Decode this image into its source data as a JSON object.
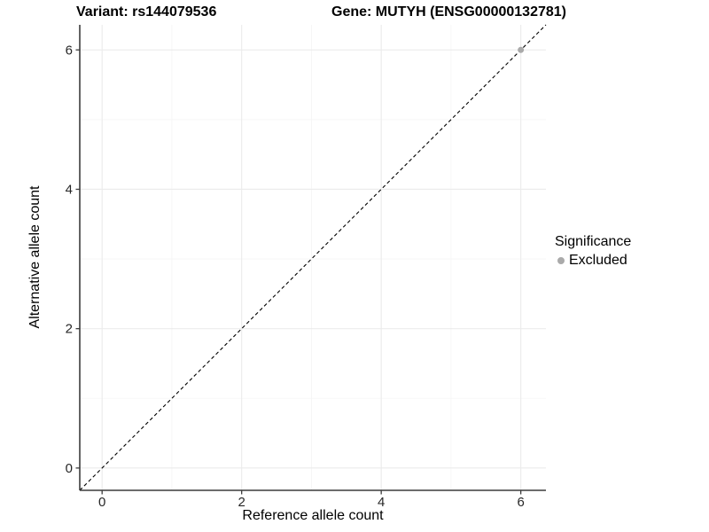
{
  "header": {
    "title_left": "Variant: rs144079536",
    "title_right": "Gene: MUTYH (ENSG00000132781)"
  },
  "chart_data": {
    "type": "scatter",
    "xlabel": "Reference allele count",
    "ylabel": "Alternative allele count",
    "xlim": [
      -0.32,
      6.36
    ],
    "ylim": [
      -0.32,
      6.36
    ],
    "x_ticks": [
      0,
      2,
      4,
      6
    ],
    "y_ticks": [
      0,
      2,
      4,
      6
    ],
    "x_minor_ticks": [
      1,
      3,
      5
    ],
    "y_minor_ticks": [
      1,
      3,
      5
    ],
    "grid": true,
    "points": [
      {
        "x": 6,
        "y": 6,
        "series": "Excluded"
      }
    ],
    "reference_line": {
      "equation": "y = x",
      "style": "dashed",
      "from": {
        "x": -0.32,
        "y": -0.32
      },
      "to": {
        "x": 6.36,
        "y": 6.36
      }
    },
    "legend": {
      "title": "Significance",
      "position": "right",
      "entries": [
        {
          "label": "Excluded",
          "color": "#aaaaaa",
          "marker": "circle"
        }
      ]
    }
  },
  "colors": {
    "background": "#ffffff",
    "grid_major": "#ebebeb",
    "grid_minor": "#f5f5f5",
    "axis_line": "#3c3c3c",
    "tick_label": "#262626",
    "reference_line": "#000000",
    "point": "#aaaaaa"
  }
}
